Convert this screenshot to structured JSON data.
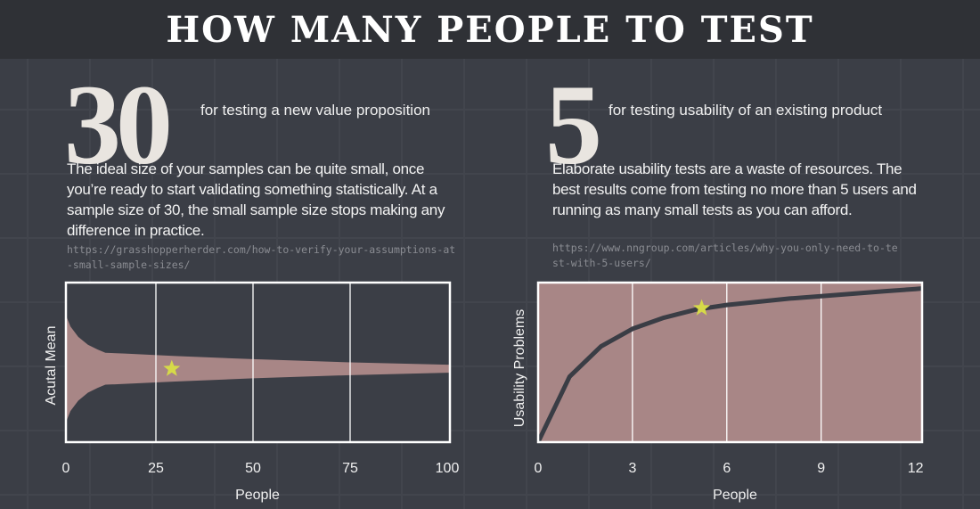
{
  "header": {
    "title": "HOW MANY PEOPLE TO TEST"
  },
  "left": {
    "number": "30",
    "caption": "for testing a new value proposition",
    "body": "The ideal size of your samples can be quite small, once you’re ready to start validating something statistically. At a sample size of 30, the small sample size stops making any difference in practice.",
    "url": "https://grasshopperherder.com/how-to-verify-your-assumptions-at-small-sample-sizes/"
  },
  "right": {
    "number": "5",
    "caption": "for testing usability of an existing product",
    "body": "Elaborate usability tests are a waste of resources. The best results come from testing no more than 5 users and running as many small tests as you can afford.",
    "url": "https://www.nngroup.com/articles/why-you-only-need-to-test-with-5-users/"
  },
  "colors": {
    "fill": "#a88686",
    "star": "#d6da48",
    "curve": "#3a3d45",
    "frame": "#ffffff"
  },
  "chart_data": [
    {
      "type": "area",
      "xlabel": "People",
      "ylabel": "Acutal Mean",
      "xlim": [
        0,
        100
      ],
      "ylim": [
        -0.92,
        1.08
      ],
      "xticks": [
        "0",
        "25",
        "50",
        "75",
        "100"
      ],
      "xtick_values": [
        0,
        25,
        50,
        75,
        100
      ],
      "grid": "vertical",
      "band": {
        "x": [
          0,
          0.5,
          1,
          2,
          3,
          5,
          7.5,
          10,
          12,
          17,
          30,
          50,
          75,
          100
        ],
        "half_width": [
          1.08,
          0.95,
          0.8,
          0.65,
          0.53,
          0.4,
          0.3,
          0.24,
          0.2,
          0.19,
          0.16,
          0.12,
          0.08,
          0.05
        ]
      },
      "highlight": {
        "x": 30,
        "y": 0,
        "marker": "star"
      }
    },
    {
      "type": "line",
      "xlabel": "People",
      "ylabel": "Usability Problems",
      "xlim": [
        0,
        12.3
      ],
      "ylim": [
        0,
        1
      ],
      "xticks": [
        "0",
        "3",
        "6",
        "9",
        "12"
      ],
      "xtick_values": [
        0,
        3,
        6,
        9,
        12
      ],
      "grid": "vertical",
      "x": [
        0,
        1,
        2,
        3,
        4,
        5,
        6,
        7,
        8,
        9,
        10,
        11,
        12,
        12.3
      ],
      "y": [
        0,
        0.41,
        0.6,
        0.71,
        0.78,
        0.83,
        0.86,
        0.88,
        0.9,
        0.915,
        0.93,
        0.945,
        0.96,
        0.965
      ],
      "highlight": {
        "x": 5.2,
        "y": 0.84,
        "marker": "star"
      }
    }
  ]
}
